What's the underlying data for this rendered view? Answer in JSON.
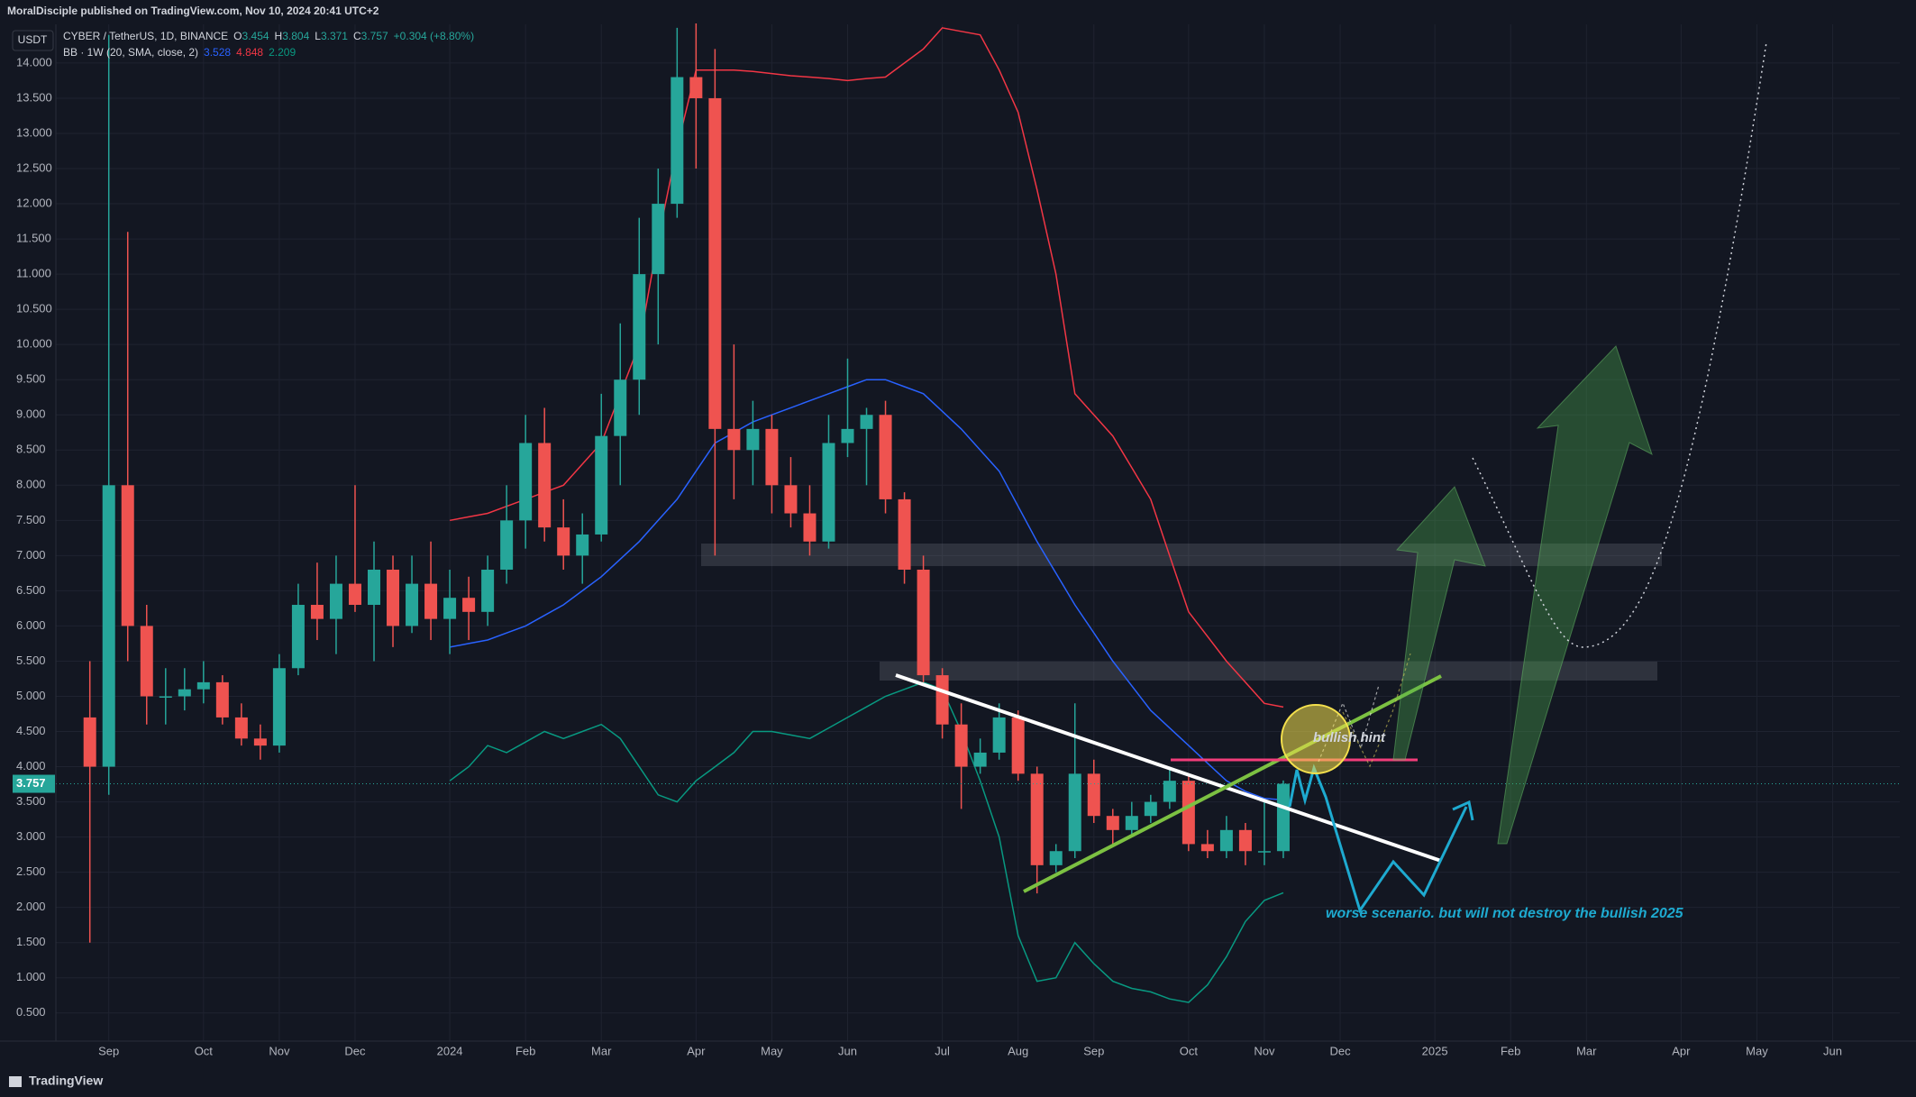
{
  "header": {
    "publisher": "MoralDisciple published on TradingView.com, Nov 10, 2024 20:41 UTC+2",
    "brand": "TradingView"
  },
  "chart_data": {
    "type": "candlestick",
    "currency": "USDT",
    "legend": {
      "symbol": "CYBER / TetherUS, 1D, BINANCE",
      "items": [
        {
          "label": "O",
          "value": 3.454
        },
        {
          "label": "H",
          "value": 3.804
        },
        {
          "label": "L",
          "value": 3.371
        },
        {
          "label": "C",
          "value": 3.757
        }
      ],
      "change": "+0.304 (+8.80%)",
      "indicator": "BB · 1W (20, SMA, close, 2)"
    },
    "categories": [
      null,
      "Sep",
      null,
      null,
      null,
      null,
      "Oct",
      null,
      null,
      null,
      "Nov",
      null,
      null,
      null,
      "Dec",
      null,
      null,
      null,
      null,
      "2024",
      null,
      null,
      null,
      "Feb",
      null,
      null,
      null,
      "Mar",
      null,
      null,
      null,
      null,
      "Apr",
      null,
      null,
      null,
      "May",
      null,
      null,
      null,
      "Jun",
      null,
      null,
      null,
      null,
      "Jul",
      null,
      null,
      null,
      "Aug",
      null,
      null,
      null,
      "Sep",
      null,
      null,
      null,
      null,
      "Oct",
      null,
      null,
      null,
      "Nov",
      null,
      null,
      null,
      "Dec",
      null,
      null,
      null,
      null,
      "2025",
      null,
      null,
      null,
      "Feb",
      null,
      null,
      null,
      "Mar",
      null,
      null,
      null,
      null,
      "Apr",
      null,
      null,
      null,
      "May",
      null,
      null,
      null,
      "Jun",
      null,
      null
    ],
    "open": [
      4.7,
      4.0,
      8.0,
      6.0,
      5.0,
      5.0,
      5.1,
      5.2,
      4.7,
      4.4,
      4.3,
      5.4,
      6.3,
      6.1,
      6.6,
      6.3,
      6.8,
      6.0,
      6.6,
      6.1,
      6.4,
      6.2,
      6.8,
      7.5,
      8.6,
      7.4,
      7.0,
      7.3,
      8.7,
      9.5,
      11.0,
      12.0,
      13.8,
      13.5,
      8.8,
      8.5,
      8.8,
      8.0,
      7.6,
      7.2,
      8.6,
      8.8,
      9.0,
      7.8,
      6.8,
      5.3,
      4.6,
      4.0,
      4.2,
      4.7,
      3.9,
      2.6,
      2.8,
      3.9,
      3.3,
      3.1,
      3.3,
      3.5,
      3.8,
      2.9,
      2.8,
      3.1,
      2.8,
      2.8,
      null,
      null,
      null,
      null,
      null,
      null,
      null,
      null,
      null,
      null,
      null,
      null,
      null,
      null,
      null,
      null,
      null,
      null,
      null,
      null,
      null,
      null,
      null,
      null,
      null,
      null,
      null,
      null,
      null,
      null,
      null
    ],
    "high": [
      5.5,
      14.4,
      11.6,
      6.3,
      5.4,
      5.4,
      5.5,
      5.3,
      4.9,
      4.6,
      5.6,
      6.6,
      6.9,
      7.0,
      8.0,
      7.2,
      7.0,
      7.0,
      7.2,
      6.8,
      6.7,
      7.0,
      8.0,
      9.0,
      9.1,
      7.8,
      7.6,
      9.3,
      10.3,
      11.8,
      12.5,
      14.5,
      14.6,
      14.2,
      10.0,
      9.2,
      9.0,
      8.4,
      8.0,
      9.0,
      9.8,
      9.1,
      9.2,
      7.9,
      7.0,
      5.4,
      4.9,
      4.4,
      4.9,
      4.8,
      4.0,
      2.9,
      4.9,
      4.1,
      3.4,
      3.5,
      3.6,
      4.0,
      3.9,
      3.1,
      3.3,
      3.2,
      3.5,
      3.804,
      null,
      null,
      null,
      null,
      null,
      null,
      null,
      null,
      null,
      null,
      null,
      null,
      null,
      null,
      null,
      null,
      null,
      null,
      null,
      null,
      null,
      null,
      null,
      null,
      null,
      null,
      null,
      null,
      null,
      null,
      null
    ],
    "low": [
      1.5,
      3.6,
      5.5,
      4.6,
      4.6,
      4.8,
      4.9,
      4.6,
      4.3,
      4.1,
      4.2,
      5.3,
      5.8,
      5.6,
      6.2,
      5.5,
      5.7,
      5.9,
      5.8,
      5.6,
      5.8,
      6.0,
      6.6,
      7.1,
      7.2,
      6.8,
      6.6,
      7.2,
      8.0,
      9.0,
      10.0,
      11.8,
      12.5,
      7.0,
      7.8,
      8.0,
      7.6,
      7.4,
      7.0,
      7.1,
      8.4,
      8.0,
      7.6,
      6.6,
      5.2,
      4.4,
      3.4,
      3.9,
      4.1,
      3.8,
      2.2,
      2.5,
      2.7,
      3.2,
      2.9,
      3.0,
      3.2,
      3.4,
      2.8,
      2.7,
      2.7,
      2.6,
      2.6,
      2.7,
      null,
      null,
      null,
      null,
      null,
      null,
      null,
      null,
      null,
      null,
      null,
      null,
      null,
      null,
      null,
      null,
      null,
      null,
      null,
      null,
      null,
      null,
      null,
      null,
      null,
      null,
      null,
      null,
      null,
      null,
      null
    ],
    "close": [
      4.0,
      8.0,
      6.0,
      5.0,
      5.0,
      5.1,
      5.2,
      4.7,
      4.4,
      4.3,
      5.4,
      6.3,
      6.1,
      6.6,
      6.3,
      6.8,
      6.0,
      6.6,
      6.1,
      6.4,
      6.2,
      6.8,
      7.5,
      8.6,
      7.4,
      7.0,
      7.3,
      8.7,
      9.5,
      11.0,
      12.0,
      13.8,
      13.5,
      8.8,
      8.5,
      8.8,
      8.0,
      7.6,
      7.2,
      8.6,
      8.8,
      9.0,
      7.8,
      6.8,
      5.3,
      4.6,
      4.0,
      4.2,
      4.7,
      3.9,
      2.6,
      2.8,
      3.9,
      3.3,
      3.1,
      3.3,
      3.5,
      3.8,
      2.9,
      2.8,
      3.1,
      2.8,
      2.8,
      3.757,
      null,
      null,
      null,
      null,
      null,
      null,
      null,
      null,
      null,
      null,
      null,
      null,
      null,
      null,
      null,
      null,
      null,
      null,
      null,
      null,
      null,
      null,
      null,
      null,
      null,
      null,
      null,
      null,
      null,
      null,
      null
    ],
    "up_color": "#26a69a",
    "down_color": "#ef5350",
    "series": [
      {
        "color": "#2962ff",
        "values": [
          null,
          null,
          null,
          null,
          null,
          null,
          null,
          null,
          null,
          null,
          null,
          null,
          null,
          null,
          null,
          null,
          null,
          null,
          null,
          5.7,
          5.75,
          5.8,
          5.9,
          6.0,
          6.15,
          6.3,
          6.5,
          6.7,
          6.95,
          7.2,
          7.5,
          7.8,
          8.2,
          8.6,
          8.75,
          8.9,
          9.0,
          9.1,
          9.2,
          9.3,
          9.4,
          9.5,
          9.5,
          9.4,
          9.3,
          9.05,
          8.8,
          8.5,
          8.2,
          7.7,
          7.2,
          6.75,
          6.3,
          5.9,
          5.5,
          5.15,
          4.8,
          4.55,
          4.3,
          4.05,
          3.8,
          3.65,
          3.55,
          3.528,
          null,
          null,
          null,
          null,
          null,
          null,
          null,
          null,
          null,
          null,
          null,
          null,
          null,
          null,
          null,
          null,
          null,
          null,
          null,
          null,
          null,
          null,
          null,
          null,
          null,
          null,
          null,
          null,
          null,
          null,
          null
        ]
      },
      {
        "color": "#f23645",
        "values": [
          null,
          null,
          null,
          null,
          null,
          null,
          null,
          null,
          null,
          null,
          null,
          null,
          null,
          null,
          null,
          null,
          null,
          null,
          null,
          7.5,
          7.55,
          7.6,
          7.7,
          7.8,
          7.9,
          8.0,
          8.3,
          8.6,
          9.3,
          10.0,
          11.5,
          12.8,
          13.9,
          13.9,
          13.9,
          13.88,
          13.85,
          13.82,
          13.8,
          13.78,
          13.75,
          13.78,
          13.8,
          14.0,
          14.2,
          14.5,
          14.45,
          14.4,
          13.9,
          13.3,
          12.2,
          11.0,
          9.3,
          9.0,
          8.7,
          8.25,
          7.8,
          7.0,
          6.2,
          5.85,
          5.5,
          5.2,
          4.9,
          4.848,
          null,
          null,
          null,
          null,
          null,
          null,
          null,
          null,
          null,
          null,
          null,
          null,
          null,
          null,
          null,
          null,
          null,
          null,
          null,
          null,
          null,
          null,
          null,
          null,
          null,
          null,
          null,
          null,
          null,
          null,
          null
        ]
      },
      {
        "color": "#089981",
        "values": [
          null,
          null,
          null,
          null,
          null,
          null,
          null,
          null,
          null,
          null,
          null,
          null,
          null,
          null,
          null,
          null,
          null,
          null,
          null,
          3.8,
          4.0,
          4.3,
          4.2,
          4.35,
          4.5,
          4.4,
          4.5,
          4.6,
          4.4,
          4.0,
          3.6,
          3.5,
          3.8,
          4.0,
          4.2,
          4.5,
          4.5,
          4.45,
          4.4,
          4.55,
          4.7,
          4.85,
          5.0,
          5.1,
          5.2,
          5.1,
          4.5,
          3.8,
          3.0,
          1.6,
          0.95,
          1.0,
          1.5,
          1.2,
          0.95,
          0.85,
          0.8,
          0.7,
          0.65,
          0.9,
          1.3,
          1.8,
          2.1,
          2.209,
          null,
          null,
          null,
          null,
          null,
          null,
          null,
          null,
          null,
          null,
          null,
          null,
          null,
          null,
          null,
          null,
          null,
          null,
          null,
          null,
          null,
          null,
          null,
          null,
          null,
          null,
          null,
          null,
          null,
          null,
          null
        ]
      }
    ],
    "ylim": [
      0.1,
      14.55
    ],
    "yticks": [
      {
        "value": 0.5,
        "label": "0.500"
      },
      {
        "value": 1.0,
        "label": "1.000"
      },
      {
        "value": 1.5,
        "label": "1.500"
      },
      {
        "value": 2.0,
        "label": "2.000"
      },
      {
        "value": 2.5,
        "label": "2.500"
      },
      {
        "value": 3.0,
        "label": "3.000"
      },
      {
        "value": 3.5,
        "label": "3.500"
      },
      {
        "value": 4.0,
        "label": "4.000"
      },
      {
        "value": 4.5,
        "label": "4.500"
      },
      {
        "value": 5.0,
        "label": "5.000"
      },
      {
        "value": 5.5,
        "label": "5.500"
      },
      {
        "value": 6.0,
        "label": "6.000"
      },
      {
        "value": 6.5,
        "label": "6.500"
      },
      {
        "value": 7.0,
        "label": "7.000"
      },
      {
        "value": 7.5,
        "label": "7.500"
      },
      {
        "value": 8.0,
        "label": "8.000"
      },
      {
        "value": 8.5,
        "label": "8.500"
      },
      {
        "value": 9.0,
        "label": "9.000"
      },
      {
        "value": 9.5,
        "label": "9.500"
      },
      {
        "value": 10.0,
        "label": "10.000"
      },
      {
        "value": 10.5,
        "label": "10.500"
      },
      {
        "value": 11.0,
        "label": "11.000"
      },
      {
        "value": 11.5,
        "label": "11.500"
      },
      {
        "value": 12.0,
        "label": "12.000"
      },
      {
        "value": 12.5,
        "label": "12.500"
      },
      {
        "value": 13.0,
        "label": "13.000"
      },
      {
        "value": 13.5,
        "label": "13.500"
      },
      {
        "value": 14.0,
        "label": "14.000"
      }
    ],
    "grid": true,
    "annotations": {
      "hint": "bullish hint",
      "scenario": "worse scenario. but will not destroy the bullish 2025"
    }
  }
}
